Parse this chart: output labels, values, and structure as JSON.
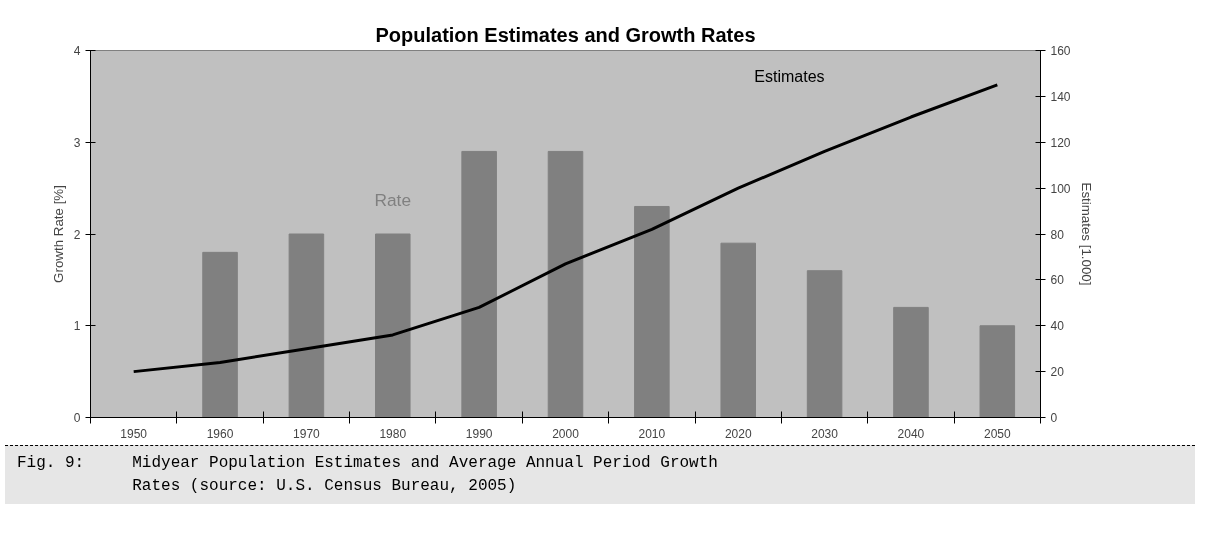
{
  "chart_data": {
    "type": "bar",
    "title": "Population Estimates and Growth Rates",
    "categories": [
      "1950",
      "1960",
      "1970",
      "1980",
      "1990",
      "2000",
      "2010",
      "2020",
      "2030",
      "2040",
      "2050"
    ],
    "series": [
      {
        "name": "Rate",
        "color": "#808080",
        "values": [
          null,
          1.8,
          2.0,
          2.0,
          2.9,
          2.9,
          2.3,
          1.9,
          1.6,
          1.2,
          1.0
        ]
      },
      {
        "name": "Estimates",
        "type": "line",
        "axis": "y2",
        "color": "#000000",
        "values": [
          20,
          24,
          30,
          36,
          48,
          67,
          82,
          100,
          116,
          131,
          145
        ]
      }
    ],
    "ylabel": "Growth Rate [%]",
    "y2label": "Estimates [1.000]",
    "ylim": [
      0,
      4
    ],
    "yticks": [
      0,
      1,
      2,
      3,
      4
    ],
    "y2lim": [
      0,
      160
    ],
    "y2ticks": [
      0,
      20,
      40,
      60,
      80,
      100,
      120,
      140,
      160
    ],
    "grid": false,
    "marker": "none",
    "line_style": "solid",
    "annotations": [
      "Fig. 9:     Midyear Population Estimates and Average Annual Period Growth\n            Rates (source: U.S. Census Bureau, 2005)"
    ]
  }
}
